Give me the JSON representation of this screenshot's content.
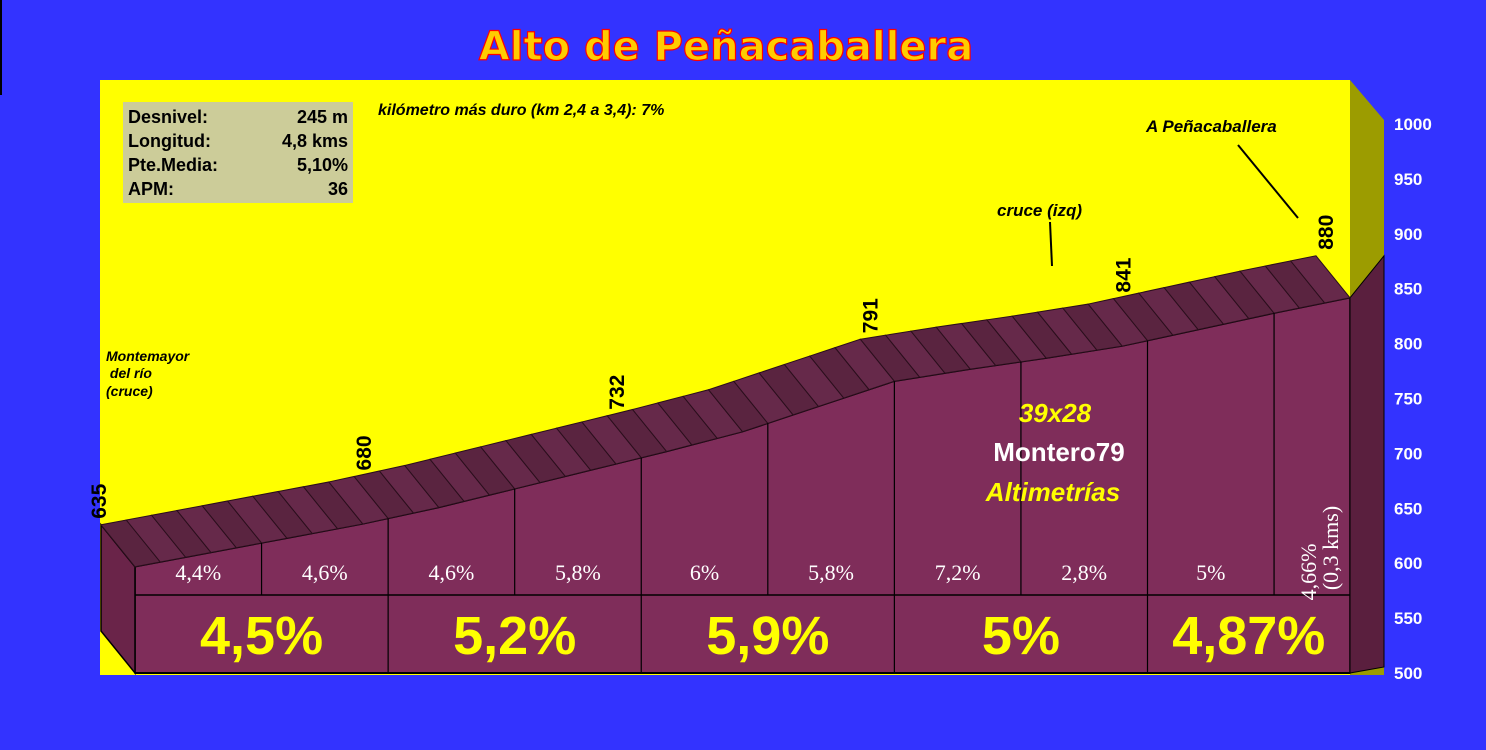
{
  "title": "Alto de Peñacaballera",
  "stats": [
    {
      "label": "Desnivel:",
      "value": "245 m"
    },
    {
      "label": "Longitud:",
      "value": "4,8 kms"
    },
    {
      "label": "Pte.Media:",
      "value": "5,10%"
    },
    {
      "label": "APM:",
      "value": "36"
    }
  ],
  "hardest_km": "kilómetro más duro (km 2,4 a 3,4):   7%",
  "credits": {
    "gear": "39x28",
    "author": "Montero79",
    "site": "Altimetrías"
  },
  "colors": {
    "background": "#3333ff",
    "sky": "#ffff00",
    "profile_side": "#7f2d5a",
    "profile_top": "#59243e",
    "accent": "#ffff00"
  },
  "chart_data": {
    "type": "area",
    "title": "Alto de Peñacaballera",
    "ylim": [
      500,
      1000
    ],
    "y_ticks": [
      "1000",
      "950",
      "900",
      "850",
      "800",
      "750",
      "700",
      "650",
      "600",
      "550",
      "500"
    ],
    "profile": {
      "km": [
        0,
        0.3,
        0.6,
        0.9,
        1.2,
        1.5,
        1.8,
        2.1,
        2.4,
        2.7,
        3.0,
        3.3,
        3.6,
        3.9,
        4.2,
        4.5,
        4.8
      ],
      "altitude": [
        635,
        648,
        661,
        674,
        689,
        706,
        723,
        740,
        758,
        781,
        804,
        815,
        825,
        836,
        851,
        866,
        880
      ]
    },
    "point_labels": [
      "635",
      "680",
      "732",
      "791",
      "841",
      "880"
    ],
    "annotations": {
      "start": [
        "Montemayor",
        " del río",
        "(cruce)"
      ],
      "junction": "cruce (izq)",
      "summit": "A Peñacaballera"
    },
    "segment_gradients": [
      "4,4%",
      "4,6%",
      "4,6%",
      "5,8%",
      "6%",
      "5,8%",
      "7,2%",
      "2,8%",
      "5%"
    ],
    "last_segment": {
      "gradient": "4,66%",
      "length": "(0,3 kms)"
    },
    "km_gradients": [
      "4,5%",
      "5,2%",
      "5,9%",
      "5%",
      "4,87%"
    ]
  }
}
